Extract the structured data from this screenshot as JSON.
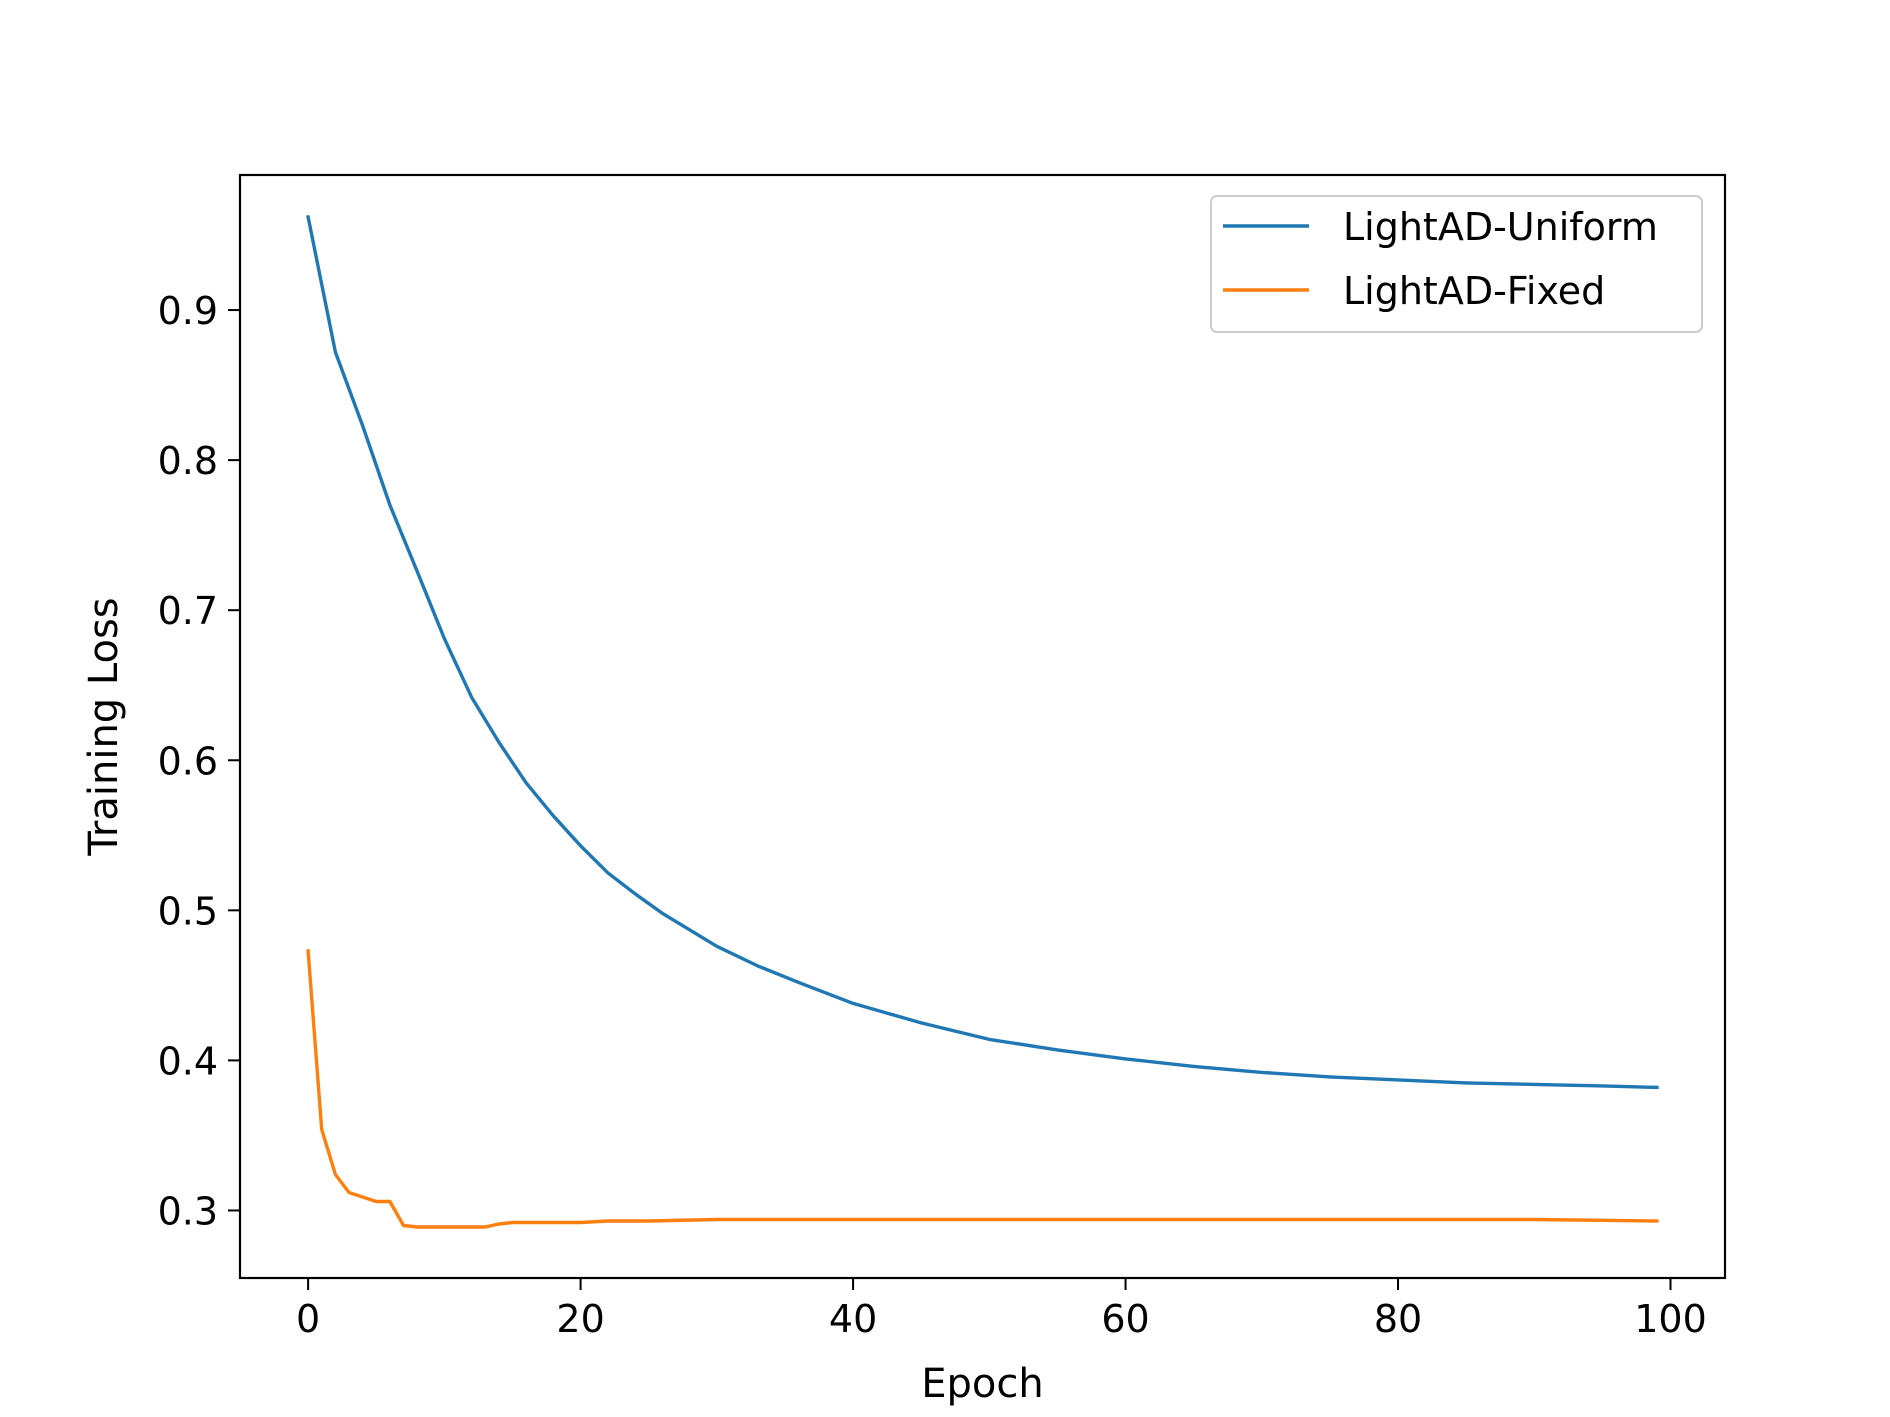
{
  "chart_data": {
    "type": "line",
    "title": "",
    "xlabel": "Epoch",
    "ylabel": "Training Loss",
    "xlim": [
      -5,
      104
    ],
    "ylim": [
      0.255,
      0.99
    ],
    "xticks": [
      0,
      20,
      40,
      60,
      80,
      100
    ],
    "yticks": [
      0.3,
      0.4,
      0.5,
      0.6,
      0.7,
      0.8,
      0.9
    ],
    "grid": false,
    "legend": {
      "placement": "top-right"
    },
    "colors": {
      "LightAD-Uniform": "#1f77b4",
      "LightAD-Fixed": "#ff7f0e"
    },
    "series": [
      {
        "name": "LightAD-Uniform",
        "x": [
          0,
          2,
          4,
          6,
          8,
          10,
          12,
          14,
          16,
          18,
          20,
          22,
          24,
          26,
          28,
          30,
          33,
          36,
          40,
          45,
          50,
          55,
          60,
          65,
          70,
          75,
          80,
          85,
          90,
          95,
          99
        ],
        "y": [
          0.962,
          0.872,
          0.823,
          0.77,
          0.726,
          0.681,
          0.642,
          0.612,
          0.585,
          0.563,
          0.543,
          0.525,
          0.511,
          0.498,
          0.487,
          0.476,
          0.463,
          0.452,
          0.438,
          0.425,
          0.414,
          0.407,
          0.401,
          0.396,
          0.392,
          0.389,
          0.387,
          0.385,
          0.384,
          0.383,
          0.382
        ]
      },
      {
        "name": "LightAD-Fixed",
        "x": [
          0,
          1,
          2,
          3,
          4,
          5,
          6,
          7,
          8,
          9,
          10,
          11,
          12,
          13,
          14,
          15,
          16,
          18,
          20,
          22,
          25,
          30,
          40,
          50,
          60,
          70,
          80,
          90,
          99
        ],
        "y": [
          0.473,
          0.354,
          0.324,
          0.312,
          0.309,
          0.306,
          0.306,
          0.29,
          0.289,
          0.289,
          0.289,
          0.289,
          0.289,
          0.289,
          0.291,
          0.292,
          0.292,
          0.292,
          0.292,
          0.293,
          0.293,
          0.294,
          0.294,
          0.294,
          0.294,
          0.294,
          0.294,
          0.294,
          0.293
        ]
      }
    ]
  }
}
